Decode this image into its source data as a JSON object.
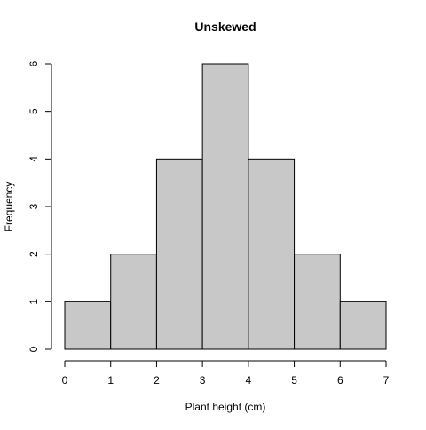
{
  "chart_data": {
    "type": "bar",
    "subtype": "histogram",
    "title": "Unskewed",
    "xlabel": "Plant height (cm)",
    "ylabel": "Frequency",
    "bins": [
      {
        "start": 0,
        "end": 1,
        "count": 1
      },
      {
        "start": 1,
        "end": 2,
        "count": 2
      },
      {
        "start": 2,
        "end": 3,
        "count": 4
      },
      {
        "start": 3,
        "end": 4,
        "count": 6
      },
      {
        "start": 4,
        "end": 5,
        "count": 4
      },
      {
        "start": 5,
        "end": 6,
        "count": 2
      },
      {
        "start": 6,
        "end": 7,
        "count": 1
      }
    ],
    "x_ticks": [
      "0",
      "1",
      "2",
      "3",
      "4",
      "5",
      "6",
      "7"
    ],
    "y_ticks": [
      "0",
      "1",
      "2",
      "3",
      "4",
      "5",
      "6"
    ],
    "xlim": [
      0,
      7
    ],
    "ylim": [
      0,
      6
    ],
    "grid": false,
    "bar_color": "#c8c8c8",
    "edge_color": "#000000"
  }
}
